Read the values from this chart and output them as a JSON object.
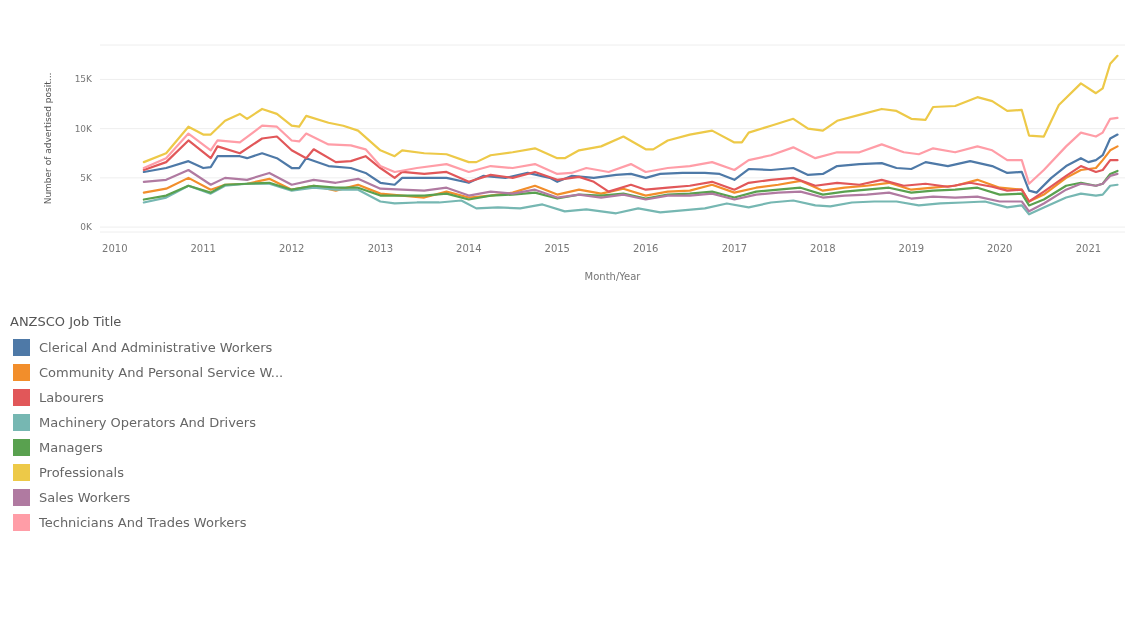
{
  "chart_data": {
    "type": "line",
    "xlabel": "Month/Year",
    "ylabel": "Number of advertised posit...",
    "legend_title": "ANZSCO Job Title",
    "legend": "bottom",
    "grid": "y",
    "marker": "none",
    "line_style": "solid",
    "xlim": [
      "2009-11",
      "2021-06"
    ],
    "xticks": [
      {
        "value": "2010",
        "label": "2010"
      },
      {
        "value": "2011",
        "label": "2011"
      },
      {
        "value": "2012",
        "label": "2012"
      },
      {
        "value": "2013",
        "label": "2013"
      },
      {
        "value": "2014",
        "label": "2014"
      },
      {
        "value": "2015",
        "label": "2015"
      },
      {
        "value": "2016",
        "label": "2016"
      },
      {
        "value": "2017",
        "label": "2017"
      },
      {
        "value": "2018",
        "label": "2018"
      },
      {
        "value": "2019",
        "label": "2019"
      },
      {
        "value": "2020",
        "label": "2020"
      },
      {
        "value": "2021",
        "label": "2021"
      }
    ],
    "ylim": [
      -500,
      18500
    ],
    "yticks": [
      {
        "value": 0,
        "label": "0K"
      },
      {
        "value": 5000,
        "label": "5K"
      },
      {
        "value": 10000,
        "label": "10K"
      },
      {
        "value": 15000,
        "label": "15K"
      }
    ],
    "series": [
      {
        "name": "Clerical And Administrative Workers",
        "color": "#4e79a7",
        "x": [
          "2010-05",
          "2010-08",
          "2010-11",
          "2011-01",
          "2011-02",
          "2011-03",
          "2011-06",
          "2011-07",
          "2011-09",
          "2011-11",
          "2012-01",
          "2012-02",
          "2012-03",
          "2012-06",
          "2012-09",
          "2012-11",
          "2013-01",
          "2013-03",
          "2013-04",
          "2013-07",
          "2013-10",
          "2014-01",
          "2014-03",
          "2014-06",
          "2014-09",
          "2014-12",
          "2015-01",
          "2015-03",
          "2015-06",
          "2015-09",
          "2015-11",
          "2016-01",
          "2016-03",
          "2016-06",
          "2016-09",
          "2016-11",
          "2017-01",
          "2017-03",
          "2017-06",
          "2017-09",
          "2017-11",
          "2018-01",
          "2018-03",
          "2018-06",
          "2018-09",
          "2018-11",
          "2019-01",
          "2019-03",
          "2019-06",
          "2019-09",
          "2019-12",
          "2020-02",
          "2020-04",
          "2020-05",
          "2020-06",
          "2020-08",
          "2020-10",
          "2020-12",
          "2021-01",
          "2021-02",
          "2021-03",
          "2021-04",
          "2021-05"
        ],
        "values": [
          5600,
          6000,
          6700,
          6000,
          6100,
          7200,
          7200,
          7000,
          7500,
          7000,
          6000,
          6000,
          7000,
          6200,
          6000,
          5500,
          4500,
          4300,
          5000,
          5000,
          5000,
          4500,
          5200,
          5000,
          5500,
          5000,
          4600,
          5200,
          5000,
          5300,
          5400,
          5000,
          5400,
          5500,
          5500,
          5400,
          4800,
          5900,
          5800,
          6000,
          5300,
          5400,
          6200,
          6400,
          6500,
          6000,
          5900,
          6600,
          6200,
          6700,
          6200,
          5500,
          5600,
          3700,
          3500,
          5000,
          6200,
          7000,
          6600,
          6800,
          7300,
          9000,
          9400
        ]
      },
      {
        "name": "Community And Personal Service W...",
        "color": "#f28e2b",
        "x": [
          "2010-05",
          "2010-08",
          "2010-11",
          "2011-02",
          "2011-04",
          "2011-07",
          "2011-10",
          "2012-01",
          "2012-04",
          "2012-07",
          "2012-10",
          "2013-01",
          "2013-04",
          "2013-07",
          "2013-10",
          "2014-01",
          "2014-04",
          "2014-07",
          "2014-10",
          "2015-01",
          "2015-04",
          "2015-07",
          "2015-10",
          "2016-01",
          "2016-04",
          "2016-07",
          "2016-10",
          "2017-01",
          "2017-04",
          "2017-07",
          "2017-10",
          "2018-01",
          "2018-04",
          "2018-07",
          "2018-10",
          "2019-01",
          "2019-04",
          "2019-07",
          "2019-10",
          "2020-01",
          "2020-04",
          "2020-05",
          "2020-07",
          "2020-10",
          "2020-12",
          "2021-02",
          "2021-03",
          "2021-04",
          "2021-05"
        ],
        "values": [
          3500,
          3900,
          5000,
          3800,
          4300,
          4400,
          4900,
          3800,
          4200,
          3700,
          4300,
          3400,
          3200,
          3000,
          3600,
          3000,
          3200,
          3500,
          4200,
          3300,
          3800,
          3400,
          3900,
          3200,
          3600,
          3700,
          4300,
          3500,
          4000,
          4300,
          4700,
          3700,
          4000,
          4200,
          4500,
          3800,
          4000,
          4200,
          4800,
          4000,
          3800,
          2600,
          3300,
          5000,
          5800,
          6000,
          6800,
          7800,
          8200
        ]
      },
      {
        "name": "Labourers",
        "color": "#e15759",
        "x": [
          "2010-05",
          "2010-08",
          "2010-11",
          "2011-02",
          "2011-03",
          "2011-06",
          "2011-09",
          "2011-11",
          "2012-01",
          "2012-03",
          "2012-04",
          "2012-07",
          "2012-09",
          "2012-11",
          "2013-01",
          "2013-03",
          "2013-04",
          "2013-07",
          "2013-10",
          "2014-01",
          "2014-04",
          "2014-07",
          "2014-10",
          "2015-01",
          "2015-04",
          "2015-06",
          "2015-08",
          "2015-11",
          "2016-01",
          "2016-04",
          "2016-07",
          "2016-10",
          "2017-01",
          "2017-03",
          "2017-06",
          "2017-09",
          "2017-12",
          "2018-03",
          "2018-06",
          "2018-09",
          "2018-12",
          "2019-03",
          "2019-06",
          "2019-09",
          "2019-12",
          "2020-02",
          "2020-04",
          "2020-05",
          "2020-07",
          "2020-10",
          "2020-12",
          "2021-02",
          "2021-03",
          "2021-04",
          "2021-05"
        ],
        "values": [
          5800,
          6600,
          8800,
          7000,
          8200,
          7500,
          9000,
          9200,
          7800,
          7000,
          7900,
          6600,
          6700,
          7200,
          6000,
          5000,
          5600,
          5400,
          5600,
          4600,
          5300,
          5000,
          5600,
          4800,
          5100,
          4600,
          3600,
          4300,
          3800,
          4000,
          4200,
          4600,
          3800,
          4500,
          4800,
          5000,
          4200,
          4500,
          4300,
          4800,
          4200,
          4400,
          4100,
          4500,
          4100,
          3700,
          3800,
          2600,
          3600,
          5200,
          6200,
          5600,
          5800,
          6800,
          6800
        ]
      },
      {
        "name": "Machinery Operators And Drivers",
        "color": "#76b7b2",
        "x": [
          "2010-05",
          "2010-08",
          "2010-11",
          "2011-02",
          "2011-04",
          "2011-07",
          "2011-10",
          "2012-01",
          "2012-04",
          "2012-07",
          "2012-10",
          "2013-01",
          "2013-03",
          "2013-06",
          "2013-09",
          "2013-12",
          "2014-02",
          "2014-05",
          "2014-08",
          "2014-11",
          "2015-02",
          "2015-05",
          "2015-09",
          "2015-12",
          "2016-03",
          "2016-06",
          "2016-09",
          "2016-12",
          "2017-03",
          "2017-06",
          "2017-09",
          "2017-12",
          "2018-02",
          "2018-05",
          "2018-08",
          "2018-11",
          "2019-02",
          "2019-05",
          "2019-08",
          "2019-11",
          "2020-02",
          "2020-04",
          "2020-05",
          "2020-07",
          "2020-10",
          "2020-12",
          "2021-02",
          "2021-03",
          "2021-04",
          "2021-05"
        ],
        "values": [
          2500,
          3000,
          4200,
          3400,
          4200,
          4400,
          4400,
          3700,
          4000,
          3800,
          3800,
          2600,
          2400,
          2500,
          2500,
          2700,
          1900,
          2000,
          1900,
          2300,
          1600,
          1800,
          1400,
          1900,
          1500,
          1700,
          1900,
          2400,
          2000,
          2500,
          2700,
          2200,
          2100,
          2500,
          2600,
          2600,
          2200,
          2400,
          2500,
          2600,
          2000,
          2200,
          1300,
          2000,
          3000,
          3400,
          3200,
          3300,
          4200,
          4300
        ]
      },
      {
        "name": "Managers",
        "color": "#59a14f",
        "x": [
          "2010-05",
          "2010-08",
          "2010-11",
          "2011-02",
          "2011-04",
          "2011-07",
          "2011-10",
          "2012-01",
          "2012-04",
          "2012-07",
          "2012-10",
          "2013-01",
          "2013-04",
          "2013-07",
          "2013-10",
          "2014-01",
          "2014-04",
          "2014-07",
          "2014-10",
          "2015-01",
          "2015-04",
          "2015-07",
          "2015-10",
          "2016-01",
          "2016-04",
          "2016-07",
          "2016-10",
          "2017-01",
          "2017-04",
          "2017-07",
          "2017-10",
          "2018-01",
          "2018-04",
          "2018-07",
          "2018-10",
          "2019-01",
          "2019-04",
          "2019-07",
          "2019-10",
          "2020-01",
          "2020-04",
          "2020-05",
          "2020-07",
          "2020-10",
          "2020-12",
          "2021-02",
          "2021-03",
          "2021-04",
          "2021-05"
        ],
        "values": [
          2800,
          3200,
          4200,
          3500,
          4300,
          4400,
          4500,
          3800,
          4200,
          4000,
          4000,
          3200,
          3200,
          3200,
          3400,
          2800,
          3200,
          3300,
          3500,
          2900,
          3300,
          3200,
          3400,
          2900,
          3300,
          3400,
          3600,
          3000,
          3600,
          3800,
          4000,
          3300,
          3600,
          3800,
          4000,
          3500,
          3700,
          3800,
          4000,
          3300,
          3400,
          2200,
          2800,
          4200,
          4500,
          4200,
          4400,
          5400,
          5700
        ]
      },
      {
        "name": "Professionals",
        "color": "#edc948",
        "x": [
          "2010-05",
          "2010-08",
          "2010-11",
          "2011-01",
          "2011-02",
          "2011-04",
          "2011-06",
          "2011-07",
          "2011-09",
          "2011-11",
          "2012-01",
          "2012-02",
          "2012-03",
          "2012-06",
          "2012-08",
          "2012-10",
          "2013-01",
          "2013-03",
          "2013-04",
          "2013-07",
          "2013-10",
          "2014-01",
          "2014-02",
          "2014-04",
          "2014-07",
          "2014-10",
          "2015-01",
          "2015-02",
          "2015-04",
          "2015-07",
          "2015-10",
          "2016-01",
          "2016-02",
          "2016-04",
          "2016-07",
          "2016-10",
          "2017-01",
          "2017-02",
          "2017-03",
          "2017-06",
          "2017-09",
          "2017-11",
          "2018-01",
          "2018-03",
          "2018-06",
          "2018-09",
          "2018-11",
          "2019-01",
          "2019-03",
          "2019-04",
          "2019-07",
          "2019-10",
          "2019-12",
          "2020-02",
          "2020-04",
          "2020-05",
          "2020-07",
          "2020-09",
          "2020-12",
          "2021-02",
          "2021-03",
          "2021-04",
          "2021-05"
        ],
        "values": [
          6600,
          7500,
          10200,
          9400,
          9400,
          10800,
          11500,
          11000,
          12000,
          11500,
          10300,
          10200,
          11300,
          10600,
          10300,
          9800,
          7800,
          7200,
          7800,
          7500,
          7400,
          6600,
          6600,
          7300,
          7600,
          8000,
          7000,
          7000,
          7800,
          8200,
          9200,
          7900,
          7900,
          8800,
          9400,
          9800,
          8600,
          8600,
          9600,
          10300,
          11000,
          10000,
          9800,
          10800,
          11400,
          12000,
          11800,
          11000,
          10900,
          12200,
          12300,
          13200,
          12800,
          11800,
          11900,
          9300,
          9200,
          12400,
          14600,
          13600,
          14100,
          16600,
          17400
        ]
      },
      {
        "name": "Sales Workers",
        "color": "#b07aa1",
        "x": [
          "2010-05",
          "2010-08",
          "2010-11",
          "2011-02",
          "2011-04",
          "2011-07",
          "2011-10",
          "2012-01",
          "2012-04",
          "2012-07",
          "2012-10",
          "2013-01",
          "2013-04",
          "2013-07",
          "2013-10",
          "2014-01",
          "2014-04",
          "2014-07",
          "2014-10",
          "2015-01",
          "2015-04",
          "2015-07",
          "2015-10",
          "2016-01",
          "2016-04",
          "2016-07",
          "2016-10",
          "2017-01",
          "2017-04",
          "2017-07",
          "2017-10",
          "2018-01",
          "2018-04",
          "2018-07",
          "2018-10",
          "2019-01",
          "2019-04",
          "2019-07",
          "2019-10",
          "2020-01",
          "2020-04",
          "2020-05",
          "2020-07",
          "2020-10",
          "2020-12",
          "2021-02",
          "2021-03",
          "2021-04",
          "2021-05"
        ],
        "values": [
          4600,
          4800,
          5800,
          4300,
          5000,
          4800,
          5500,
          4300,
          4800,
          4500,
          4900,
          3900,
          3800,
          3700,
          4000,
          3200,
          3600,
          3400,
          3800,
          3000,
          3300,
          3000,
          3300,
          2800,
          3200,
          3200,
          3400,
          2800,
          3300,
          3500,
          3600,
          3000,
          3200,
          3300,
          3500,
          2900,
          3100,
          3000,
          3100,
          2600,
          2600,
          1600,
          2400,
          3800,
          4400,
          4200,
          4400,
          5200,
          5400
        ]
      },
      {
        "name": "Technicians And Trades Workers",
        "color": "#ff9da7",
        "x": [
          "2010-05",
          "2010-08",
          "2010-11",
          "2011-02",
          "2011-03",
          "2011-06",
          "2011-09",
          "2011-11",
          "2012-01",
          "2012-02",
          "2012-03",
          "2012-06",
          "2012-09",
          "2012-11",
          "2013-01",
          "2013-03",
          "2013-06",
          "2013-10",
          "2014-01",
          "2014-04",
          "2014-07",
          "2014-10",
          "2015-01",
          "2015-03",
          "2015-05",
          "2015-08",
          "2015-11",
          "2016-01",
          "2016-04",
          "2016-07",
          "2016-10",
          "2017-01",
          "2017-03",
          "2017-06",
          "2017-09",
          "2017-12",
          "2018-03",
          "2018-06",
          "2018-09",
          "2018-12",
          "2019-02",
          "2019-04",
          "2019-07",
          "2019-10",
          "2019-12",
          "2020-02",
          "2020-04",
          "2020-05",
          "2020-07",
          "2020-10",
          "2020-12",
          "2021-02",
          "2021-03",
          "2021-04",
          "2021-05"
        ],
        "values": [
          6000,
          7000,
          9500,
          7800,
          8800,
          8600,
          10300,
          10200,
          8800,
          8700,
          9500,
          8400,
          8300,
          7900,
          6200,
          5600,
          6000,
          6400,
          5600,
          6200,
          6000,
          6400,
          5400,
          5500,
          6000,
          5600,
          6400,
          5600,
          6000,
          6200,
          6600,
          5800,
          6800,
          7300,
          8100,
          7000,
          7600,
          7600,
          8400,
          7600,
          7400,
          8000,
          7600,
          8200,
          7800,
          6800,
          6800,
          4400,
          5800,
          8200,
          9600,
          9200,
          9600,
          11000,
          11100
        ]
      }
    ]
  }
}
